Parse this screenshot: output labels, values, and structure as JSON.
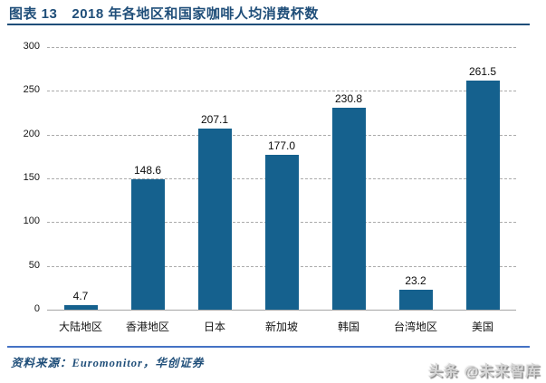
{
  "header": {
    "label": "图表 13",
    "title": "2018 年各地区和国家咖啡人均消费杯数"
  },
  "chart_data": {
    "type": "bar",
    "title": "2018 年各地区和国家咖啡人均消费杯数",
    "categories": [
      "大陆地区",
      "香港地区",
      "日本",
      "新加坡",
      "韩国",
      "台湾地区",
      "美国"
    ],
    "values": [
      4.7,
      148.6,
      207.1,
      177.0,
      230.8,
      23.2,
      261.5
    ],
    "value_labels": [
      "4.7",
      "148.6",
      "207.1",
      "177.0",
      "230.8",
      "23.2",
      "261.5"
    ],
    "xlabel": "",
    "ylabel": "",
    "ylim": [
      0,
      300
    ],
    "yticks": [
      0,
      50,
      100,
      150,
      200,
      250,
      300
    ],
    "grid": "horizontal-dashed",
    "legend": "none",
    "bar_color": "#15618E"
  },
  "footer": {
    "source": "资料来源：Euromonitor，华创证券"
  },
  "watermark": {
    "text": "头条 @未来智库"
  },
  "colors": {
    "title_blue": "#1F4E79",
    "header_rule": "#1F4E79",
    "footer_rule": "#4472C4",
    "bar_blue": "#15618E",
    "gridline_grey": "#ABABAB",
    "axis_grey": "#A6A6A6",
    "text_black": "#151515",
    "watermark_grey": "#D6D6D6"
  }
}
